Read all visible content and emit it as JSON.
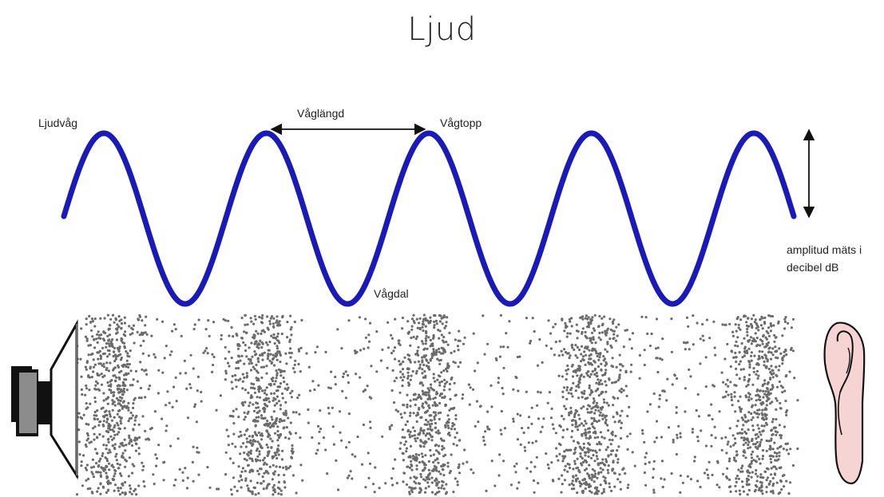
{
  "title": "Ljud",
  "labels": {
    "ljudvag": "Ljudvåg",
    "vaglangd": "Våglängd",
    "vagtopp": "Vågtopp",
    "vagdal": "Vågdal",
    "amplitud_line1": "amplitud mäts i",
    "amplitud_line2": "decibel dB"
  },
  "colors": {
    "wave": "#1a1ab8",
    "particles": "#6b6b6b",
    "ear_fill": "#f6d4d4",
    "speaker_body": "#8c8c8c"
  },
  "icons": {
    "source": "loudspeaker-icon",
    "receiver": "ear-icon"
  }
}
